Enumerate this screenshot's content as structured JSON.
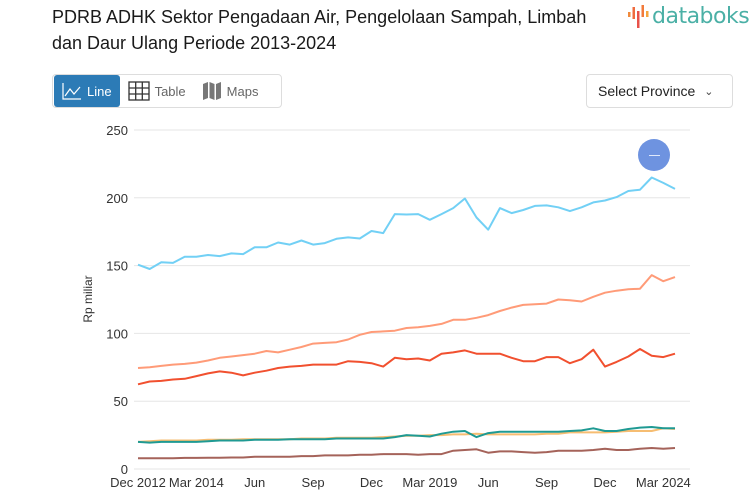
{
  "header": {
    "title": "PDRB ADHK Sektor Pengadaan Air, Pengelolaan Sampah, Limbah dan Daur Ulang Periode 2013-2024",
    "logo_text": "databoks"
  },
  "tabs": [
    {
      "label": "Line",
      "icon": "line-chart-icon",
      "active": true
    },
    {
      "label": "Table",
      "icon": "table-icon",
      "active": false
    },
    {
      "label": "Maps",
      "icon": "map-icon",
      "active": false
    }
  ],
  "province_select": {
    "label": "Select Province"
  },
  "colors": {
    "accent": "#2c7bb6",
    "logo_text": "#4bb0a6",
    "zoom_button": "#6e93e0"
  },
  "chart_data": {
    "type": "line",
    "ylabel": "Rp miliar",
    "xlabel": "",
    "ylim": [
      0,
      250
    ],
    "yticks": [
      0,
      50,
      100,
      150,
      200,
      250
    ],
    "grid": true,
    "legend": "none",
    "categories": [
      "Dec 2012",
      "Mar 2013",
      "Jun 2013",
      "Sep 2013",
      "Dec 2013",
      "Mar 2014",
      "Jun 2014",
      "Sep 2014",
      "Dec 2014",
      "Mar 2015",
      "Jun 2015",
      "Sep 2015",
      "Dec 2015",
      "Mar 2016",
      "Jun 2016",
      "Sep 2016",
      "Dec 2016",
      "Mar 2017",
      "Jun 2017",
      "Sep 2017",
      "Dec 2017",
      "Mar 2018",
      "Jun 2018",
      "Sep 2018",
      "Dec 2018",
      "Mar 2019",
      "Jun 2019",
      "Sep 2019",
      "Dec 2019",
      "Mar 2020",
      "Jun 2020",
      "Sep 2020",
      "Dec 2020",
      "Mar 2021",
      "Jun 2021",
      "Sep 2021",
      "Dec 2021",
      "Mar 2022",
      "Jun 2022",
      "Sep 2022",
      "Dec 2022",
      "Mar 2023",
      "Jun 2023",
      "Sep 2023",
      "Dec 2023",
      "Mar 2024",
      "Jun 2024"
    ],
    "x_tick_labels": [
      {
        "category": "Dec 2012",
        "label": "Dec 2012"
      },
      {
        "category": "Mar 2014",
        "label": "Mar 2014"
      },
      {
        "category": "Jun 2015",
        "label": "Jun"
      },
      {
        "category": "Sep 2016",
        "label": "Sep"
      },
      {
        "category": "Dec 2017",
        "label": "Dec"
      },
      {
        "category": "Mar 2019",
        "label": "Mar 2019"
      },
      {
        "category": "Jun 2020",
        "label": "Jun"
      },
      {
        "category": "Sep 2021",
        "label": "Sep"
      },
      {
        "category": "Dec 2022",
        "label": "Dec"
      },
      {
        "category": "Mar 2024",
        "label": "Mar 2024"
      }
    ],
    "series": [
      {
        "color": "#72d0f5",
        "values": [
          150.7,
          147.5,
          152.5,
          152,
          156.6,
          156.6,
          157.8,
          157,
          159,
          158.5,
          163.5,
          163.5,
          167,
          165.5,
          168.5,
          165.5,
          166.6,
          169.8,
          170.8,
          170,
          175.5,
          174,
          188,
          187.7,
          188,
          183.8,
          188,
          192.4,
          199.5,
          185.5,
          176.5,
          192.4,
          188.7,
          191,
          194,
          194.4,
          193,
          190.2,
          193,
          196.6,
          198,
          200.5,
          205,
          206,
          215,
          211,
          206.6
        ]
      },
      {
        "color": "#ff9b78",
        "values": [
          74.5,
          75,
          76,
          77,
          77.5,
          78.5,
          80,
          82,
          83,
          84,
          85,
          87,
          86,
          88,
          90,
          92.5,
          93,
          93.5,
          95.5,
          99,
          101,
          101.5,
          102,
          104,
          104.5,
          105.5,
          107,
          110,
          110,
          111.5,
          113.5,
          116.5,
          119,
          121,
          121.5,
          122,
          125,
          124.5,
          123.5,
          127,
          130,
          131.5,
          132.5,
          133,
          143,
          138.5,
          141.5
        ]
      },
      {
        "color": "#f1502f",
        "values": [
          62.5,
          64.5,
          65,
          66,
          66.5,
          68.5,
          70.5,
          72,
          71,
          69,
          71,
          72.5,
          74.5,
          75.5,
          76,
          77,
          77,
          77,
          79.5,
          79,
          78,
          75.5,
          82,
          81,
          81.5,
          80,
          85,
          86,
          87.5,
          85,
          85,
          85,
          82,
          79.5,
          79.5,
          82.5,
          82.5,
          78,
          81,
          88,
          75.5,
          79,
          83,
          88.5,
          83.5,
          82.5,
          85
        ]
      },
      {
        "color": "#f6bd72",
        "values": [
          20,
          20.5,
          21,
          21,
          21,
          21,
          21.5,
          21.5,
          21.5,
          22,
          22,
          22,
          22,
          22,
          22.5,
          22.5,
          22.5,
          23,
          23,
          23,
          23,
          23.5,
          24,
          24.5,
          24.5,
          25,
          25,
          25.5,
          25.5,
          26,
          25.5,
          25.5,
          25.5,
          25.5,
          25.5,
          26,
          26,
          27,
          27,
          27,
          27,
          27.5,
          28,
          28,
          28,
          30,
          29.5
        ]
      },
      {
        "color": "#1f9a93",
        "values": [
          20,
          19.5,
          20,
          20,
          20,
          20,
          20.5,
          21,
          21,
          21,
          21.5,
          21.5,
          21.5,
          22,
          22,
          22,
          22,
          22.5,
          22.5,
          22.5,
          22.5,
          22.5,
          23.5,
          25,
          24.5,
          24,
          26,
          27.5,
          28,
          23.5,
          26.5,
          27.5,
          27.5,
          27.5,
          27.5,
          27.5,
          27.5,
          28,
          28.5,
          30,
          28,
          28,
          29.5,
          30.5,
          31,
          30,
          30
        ]
      },
      {
        "color": "#a5635a",
        "values": [
          8,
          8,
          8,
          8,
          8.2,
          8.2,
          8.3,
          8.3,
          8.5,
          8.5,
          9,
          9,
          9,
          9,
          9.5,
          9.5,
          10,
          10,
          10,
          10.5,
          10.5,
          11,
          11,
          11,
          10.5,
          11,
          11,
          13.5,
          14,
          14.5,
          12,
          13,
          13,
          12.5,
          12,
          12.5,
          13.5,
          13.5,
          13.5,
          14,
          15,
          14,
          14,
          15,
          15.5,
          15,
          15.5
        ]
      }
    ]
  }
}
